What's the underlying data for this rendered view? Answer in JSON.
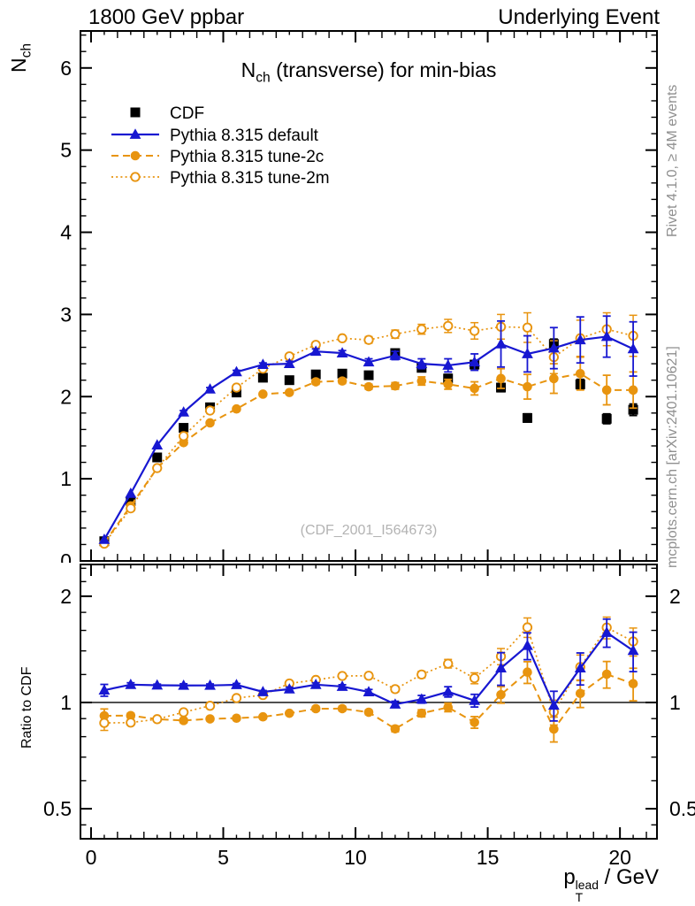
{
  "header": {
    "left": "1800 GeV ppbar",
    "right": "Underlying Event"
  },
  "title": {
    "base": "N",
    "sub": "ch",
    "rest": " (transverse) for min-bias"
  },
  "axis_titles": {
    "main_y": {
      "base": "N",
      "sub": "ch"
    },
    "ratio_y": "Ratio to CDF",
    "x": {
      "base": "p",
      "sup": "lead",
      "sub": "T",
      "rest": " / GeV"
    }
  },
  "side_notes": {
    "top": "Rivet 4.1.0, ≥ 4M events",
    "bottom": "mcplots.cern.ch [arXiv:2401.10621]"
  },
  "watermark": "(CDF_2001_I564673)",
  "colors": {
    "black": "#000000",
    "blue": "#1717d1",
    "orange": "#e8940f",
    "gray_text": "#8f8f8f",
    "watermark": "#b3b3b3",
    "frame": "#000000"
  },
  "chart_data": {
    "type": "line",
    "title": "N_ch (transverse) for min-bias",
    "xlabel": "p_T^lead / GeV",
    "ylabel_main": "N_ch",
    "ylabel_ratio": "Ratio to CDF",
    "x": [
      0.5,
      1.5,
      2.5,
      3.5,
      4.5,
      5.5,
      6.5,
      7.5,
      8.5,
      9.5,
      10.5,
      11.5,
      12.5,
      13.5,
      14.5,
      15.5,
      16.5,
      17.5,
      18.5,
      19.5,
      20.5
    ],
    "x_axis": {
      "lim": [
        -0.4,
        21.4
      ],
      "major_ticks": [
        0,
        5,
        10,
        15,
        20
      ],
      "minor_step": 0.5
    },
    "main_panel": {
      "scale": "linear",
      "ylim": [
        0,
        6.45
      ],
      "yticks": [
        0,
        1,
        2,
        3,
        4,
        5,
        6
      ],
      "minor_step": 0.2
    },
    "ratio_panel": {
      "scale": "log",
      "ylim": [
        0.411,
        2.46
      ],
      "yticks": [
        2,
        1,
        0.5
      ],
      "minor_ticks": [
        0.45,
        0.6,
        0.7,
        0.8,
        0.9,
        1.2,
        1.4,
        1.6,
        1.8,
        2.2,
        2.4
      ],
      "reference": "CDF",
      "reference_line": 1
    },
    "series": [
      {
        "name": "cdf",
        "label": "CDF",
        "role": "reference-data",
        "color": "#000000",
        "marker": "filled-square",
        "line": "none",
        "values": [
          0.24,
          0.73,
          1.26,
          1.62,
          1.87,
          2.05,
          2.23,
          2.2,
          2.27,
          2.28,
          2.26,
          2.53,
          2.35,
          2.22,
          2.39,
          2.11,
          1.74,
          2.64,
          2.15,
          1.73,
          1.84
        ],
        "errors": [
          0.02,
          0.02,
          0.02,
          0.03,
          0.03,
          0.03,
          0.03,
          0.03,
          0.03,
          0.03,
          0.04,
          0.04,
          0.04,
          0.05,
          0.05,
          0.05,
          0.05,
          0.06,
          0.06,
          0.06,
          0.07
        ]
      },
      {
        "name": "pythia-default",
        "label": "Pythia 8.315 default",
        "role": "mc",
        "color": "#1717d1",
        "marker": "filled-triangle",
        "line": "solid",
        "values": [
          0.26,
          0.82,
          1.41,
          1.81,
          2.09,
          2.3,
          2.39,
          2.4,
          2.55,
          2.53,
          2.42,
          2.5,
          2.4,
          2.38,
          2.42,
          2.64,
          2.52,
          2.59,
          2.69,
          2.73,
          2.58
        ],
        "errors": [
          0.01,
          0.01,
          0.01,
          0.02,
          0.02,
          0.02,
          0.02,
          0.03,
          0.03,
          0.03,
          0.04,
          0.05,
          0.06,
          0.08,
          0.1,
          0.28,
          0.22,
          0.25,
          0.28,
          0.25,
          0.33
        ]
      },
      {
        "name": "pythia-tune-2c",
        "label": "Pythia 8.315 tune-2c",
        "role": "mc",
        "color": "#e8940f",
        "marker": "filled-circle",
        "line": "dashed",
        "values": [
          0.22,
          0.67,
          1.13,
          1.44,
          1.68,
          1.85,
          2.03,
          2.05,
          2.18,
          2.19,
          2.12,
          2.13,
          2.19,
          2.15,
          2.1,
          2.22,
          2.12,
          2.22,
          2.28,
          2.08,
          2.08
        ],
        "errors": [
          0.01,
          0.01,
          0.01,
          0.02,
          0.02,
          0.02,
          0.02,
          0.02,
          0.03,
          0.03,
          0.03,
          0.04,
          0.05,
          0.06,
          0.08,
          0.12,
          0.15,
          0.18,
          0.2,
          0.18,
          0.22
        ]
      },
      {
        "name": "pythia-tune-2m",
        "label": "Pythia 8.315 tune-2m",
        "role": "mc",
        "color": "#e8940f",
        "marker": "open-circle",
        "line": "dotted",
        "values": [
          0.21,
          0.64,
          1.13,
          1.52,
          1.83,
          2.11,
          2.34,
          2.49,
          2.63,
          2.71,
          2.69,
          2.76,
          2.82,
          2.86,
          2.8,
          2.85,
          2.84,
          2.48,
          2.71,
          2.82,
          2.74
        ],
        "errors": [
          0.01,
          0.01,
          0.01,
          0.02,
          0.02,
          0.02,
          0.02,
          0.03,
          0.03,
          0.03,
          0.04,
          0.05,
          0.06,
          0.08,
          0.1,
          0.15,
          0.18,
          0.2,
          0.22,
          0.2,
          0.25
        ]
      }
    ],
    "legend_position": "top-left"
  }
}
